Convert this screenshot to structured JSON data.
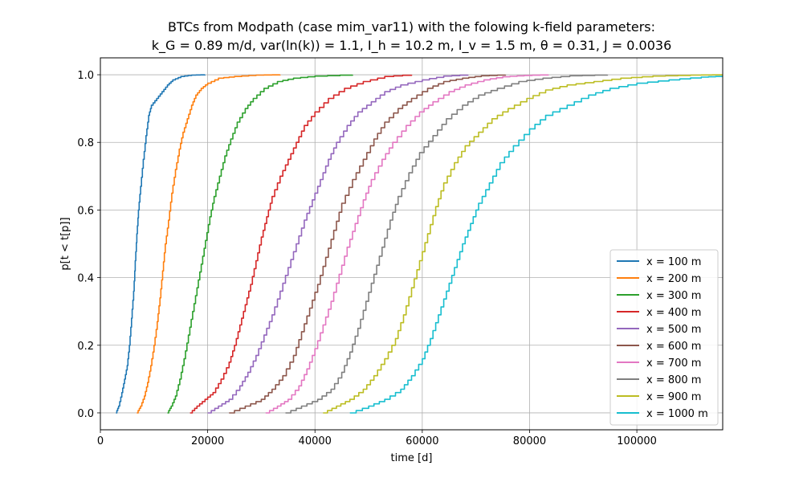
{
  "chart_data": {
    "type": "line",
    "title": "BTCs from Modpath (case mim_var11) with the folowing k-field parameters:",
    "subtitle": "k_G = 0.89 m/d, var(ln(k)) = 1.1, I_h = 10.2 m, I_v = 1.5 m, θ = 0.31, J = 0.0036",
    "xlabel": "time [d]",
    "ylabel": "p[t < t[p]]",
    "xlim": [
      0,
      116000
    ],
    "ylim": [
      -0.05,
      1.05
    ],
    "xticks": [
      0,
      20000,
      40000,
      60000,
      80000,
      100000
    ],
    "yticks": [
      0.0,
      0.2,
      0.4,
      0.6,
      0.8,
      1.0
    ],
    "xtick_labels": [
      "0",
      "20000",
      "40000",
      "60000",
      "80000",
      "100000"
    ],
    "ytick_labels": [
      "0.0",
      "0.2",
      "0.4",
      "0.6",
      "0.8",
      "1.0"
    ],
    "grid": true,
    "legend_position": "lower-right",
    "series": [
      {
        "name": "x = 100 m",
        "color": "#1f77b4",
        "x": [
          2900,
          3400,
          4000,
          4500,
          5000,
          5400,
          5800,
          6200,
          6500,
          6800,
          7100,
          7500,
          8000,
          8500,
          9000,
          9500,
          10500,
          11500,
          12500,
          13500,
          15000,
          17000,
          19500
        ],
        "y": [
          0.0,
          0.02,
          0.06,
          0.1,
          0.14,
          0.2,
          0.28,
          0.36,
          0.45,
          0.53,
          0.6,
          0.67,
          0.75,
          0.82,
          0.88,
          0.91,
          0.93,
          0.95,
          0.97,
          0.985,
          0.995,
          0.999,
          1.0
        ]
      },
      {
        "name": "x = 200 m",
        "color": "#ff7f0e",
        "x": [
          6800,
          7500,
          8200,
          8800,
          9400,
          10000,
          10600,
          11100,
          11600,
          12100,
          12700,
          13300,
          14000,
          14700,
          15400,
          16200,
          17000,
          17800,
          18800,
          20000,
          22000,
          25000,
          29000,
          33500
        ],
        "y": [
          0.0,
          0.02,
          0.05,
          0.09,
          0.14,
          0.2,
          0.27,
          0.34,
          0.42,
          0.5,
          0.57,
          0.65,
          0.72,
          0.78,
          0.83,
          0.87,
          0.91,
          0.94,
          0.96,
          0.975,
          0.99,
          0.995,
          0.999,
          1.0
        ]
      },
      {
        "name": "x = 300 m",
        "color": "#2ca02c",
        "x": [
          12500,
          13200,
          14000,
          14800,
          15600,
          16400,
          17200,
          18000,
          18800,
          19600,
          20400,
          21200,
          22200,
          23200,
          24300,
          25500,
          27000,
          28500,
          30500,
          33000,
          36000,
          40000,
          47000
        ],
        "y": [
          0.0,
          0.02,
          0.05,
          0.1,
          0.16,
          0.23,
          0.3,
          0.37,
          0.44,
          0.51,
          0.58,
          0.64,
          0.7,
          0.76,
          0.81,
          0.86,
          0.9,
          0.93,
          0.96,
          0.98,
          0.99,
          0.996,
          1.0
        ]
      },
      {
        "name": "x = 400 m",
        "color": "#d62728",
        "x": [
          16700,
          18000,
          19500,
          21000,
          22500,
          24000,
          25000,
          26000,
          27000,
          28000,
          29000,
          30000,
          31000,
          32000,
          33500,
          35000,
          36500,
          38000,
          40000,
          42500,
          45500,
          49000,
          53000,
          58000
        ],
        "y": [
          0.0,
          0.02,
          0.04,
          0.06,
          0.1,
          0.15,
          0.2,
          0.26,
          0.32,
          0.38,
          0.45,
          0.52,
          0.58,
          0.64,
          0.7,
          0.75,
          0.8,
          0.85,
          0.89,
          0.93,
          0.96,
          0.98,
          0.995,
          1.0
        ]
      },
      {
        "name": "x = 500 m",
        "color": "#9467bd",
        "x": [
          20000,
          22000,
          24000,
          26000,
          27500,
          29000,
          30500,
          32000,
          33500,
          35000,
          36500,
          38000,
          39500,
          41000,
          42500,
          44000,
          46000,
          48000,
          50500,
          53000,
          56000,
          60000,
          64000,
          68500
        ],
        "y": [
          0.0,
          0.02,
          0.04,
          0.08,
          0.12,
          0.17,
          0.23,
          0.29,
          0.36,
          0.43,
          0.5,
          0.57,
          0.63,
          0.69,
          0.75,
          0.8,
          0.85,
          0.89,
          0.92,
          0.95,
          0.97,
          0.985,
          0.996,
          1.0
        ]
      },
      {
        "name": "x = 600 m",
        "color": "#8c564b",
        "x": [
          24000,
          27000,
          30000,
          32000,
          34000,
          36000,
          37500,
          39000,
          40500,
          42000,
          43500,
          45000,
          47000,
          49000,
          51000,
          53000,
          55500,
          58000,
          61000,
          64000,
          67500,
          71000,
          75500
        ],
        "y": [
          0.0,
          0.02,
          0.04,
          0.07,
          0.11,
          0.17,
          0.24,
          0.31,
          0.38,
          0.46,
          0.54,
          0.62,
          0.69,
          0.75,
          0.81,
          0.86,
          0.9,
          0.93,
          0.96,
          0.98,
          0.99,
          0.997,
          1.0
        ]
      },
      {
        "name": "x = 700 m",
        "color": "#e377c2",
        "x": [
          30800,
          33000,
          35000,
          37000,
          38500,
          40000,
          41500,
          43000,
          44500,
          46000,
          47500,
          49000,
          50500,
          52500,
          54500,
          57000,
          59500,
          62000,
          65000,
          68000,
          71500,
          75000,
          79000,
          83500
        ],
        "y": [
          0.0,
          0.02,
          0.04,
          0.08,
          0.13,
          0.19,
          0.26,
          0.33,
          0.41,
          0.49,
          0.56,
          0.63,
          0.69,
          0.75,
          0.8,
          0.85,
          0.89,
          0.92,
          0.95,
          0.97,
          0.985,
          0.994,
          0.998,
          1.0
        ]
      },
      {
        "name": "x = 800 m",
        "color": "#7f7f7f",
        "x": [
          34500,
          37500,
          40500,
          43000,
          45000,
          46500,
          48000,
          49500,
          51000,
          52500,
          54000,
          55500,
          57500,
          59500,
          62000,
          64500,
          67500,
          70500,
          74000,
          78000,
          82500,
          87500,
          94500
        ],
        "y": [
          0.0,
          0.02,
          0.04,
          0.07,
          0.12,
          0.18,
          0.25,
          0.33,
          0.41,
          0.49,
          0.57,
          0.64,
          0.71,
          0.77,
          0.82,
          0.87,
          0.91,
          0.94,
          0.96,
          0.98,
          0.99,
          0.997,
          1.0
        ]
      },
      {
        "name": "x = 900 m",
        "color": "#bcbd22",
        "x": [
          41500,
          44000,
          46500,
          49000,
          51000,
          53000,
          55000,
          56500,
          58000,
          59500,
          61000,
          62500,
          64000,
          66000,
          68000,
          70500,
          73000,
          76000,
          79500,
          83000,
          87000,
          92000,
          97000,
          103000,
          110000,
          116000
        ],
        "y": [
          0.0,
          0.02,
          0.04,
          0.07,
          0.11,
          0.16,
          0.22,
          0.29,
          0.37,
          0.45,
          0.53,
          0.61,
          0.68,
          0.74,
          0.79,
          0.83,
          0.87,
          0.9,
          0.93,
          0.955,
          0.97,
          0.98,
          0.99,
          0.996,
          0.999,
          1.0
        ]
      },
      {
        "name": "x = 1000 m",
        "color": "#17becf",
        "x": [
          46500,
          50000,
          53000,
          56000,
          58000,
          60000,
          61500,
          63000,
          64500,
          66000,
          67500,
          69000,
          70500,
          72500,
          74500,
          77000,
          80000,
          83000,
          87000,
          91000,
          95000,
          100000,
          106000,
          112000,
          116000
        ],
        "y": [
          0.0,
          0.02,
          0.04,
          0.07,
          0.11,
          0.16,
          0.22,
          0.29,
          0.36,
          0.43,
          0.5,
          0.56,
          0.62,
          0.68,
          0.74,
          0.79,
          0.84,
          0.88,
          0.91,
          0.94,
          0.96,
          0.975,
          0.985,
          0.993,
          0.996
        ]
      }
    ]
  }
}
